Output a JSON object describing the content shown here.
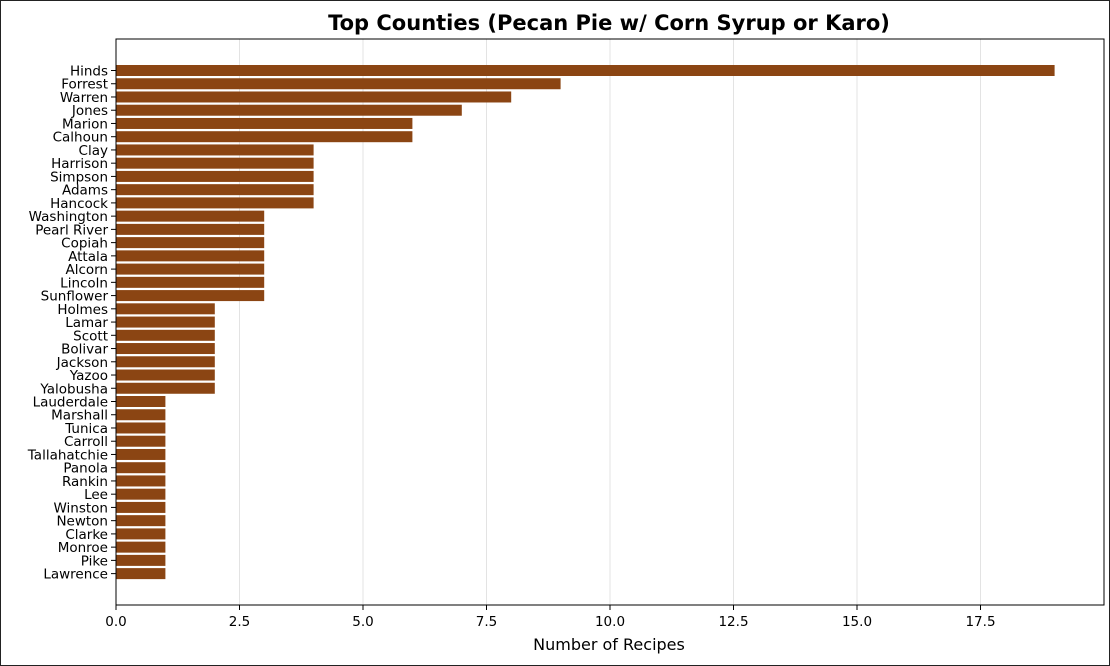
{
  "chart_data": {
    "type": "bar",
    "orientation": "horizontal",
    "title": "Top Counties (Pecan Pie w/ Corn Syrup or Karo)",
    "xlabel": "Number of Recipes",
    "ylabel": "",
    "xlim": [
      0,
      20
    ],
    "x_ticks": [
      0,
      2.5,
      5,
      7.5,
      10,
      12.5,
      15,
      17.5
    ],
    "x_tick_labels": [
      "0.0",
      "2.5",
      "5.0",
      "7.5",
      "10.0",
      "12.5",
      "15.0",
      "17.5"
    ],
    "grid": "vertical",
    "bar_color": "#8B4513",
    "categories": [
      "Hinds",
      "Forrest",
      "Warren",
      "Jones",
      "Marion",
      "Calhoun",
      "Clay",
      "Harrison",
      "Simpson",
      "Adams",
      "Hancock",
      "Washington",
      "Pearl River",
      "Copiah",
      "Attala",
      "Alcorn",
      "Lincoln",
      "Sunflower",
      "Holmes",
      "Lamar",
      "Scott",
      "Bolivar",
      "Jackson",
      "Yazoo",
      "Yalobusha",
      "Lauderdale",
      "Marshall",
      "Tunica",
      "Carroll",
      "Tallahatchie",
      "Panola",
      "Rankin",
      "Lee",
      "Winston",
      "Newton",
      "Clarke",
      "Monroe",
      "Pike",
      "Lawrence"
    ],
    "values": [
      19,
      9,
      8,
      7,
      6,
      6,
      4,
      4,
      4,
      4,
      4,
      3,
      3,
      3,
      3,
      3,
      3,
      3,
      2,
      2,
      2,
      2,
      2,
      2,
      2,
      1,
      1,
      1,
      1,
      1,
      1,
      1,
      1,
      1,
      1,
      1,
      1,
      1,
      1
    ]
  }
}
